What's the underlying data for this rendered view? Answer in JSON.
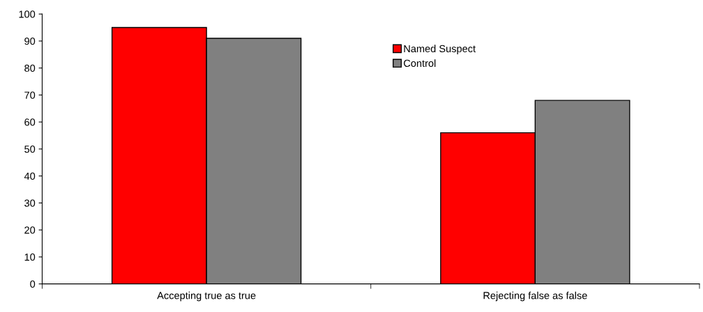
{
  "chart_data": {
    "type": "bar",
    "categories": [
      "Accepting true as true",
      "Rejecting false as false"
    ],
    "series": [
      {
        "name": "Named Suspect",
        "color": "#ff0000",
        "values": [
          95,
          56
        ]
      },
      {
        "name": "Control",
        "color": "#808080",
        "values": [
          91,
          68
        ]
      }
    ],
    "ylim": [
      0,
      100
    ],
    "yticks": [
      0,
      10,
      20,
      30,
      40,
      50,
      60,
      70,
      80,
      90,
      100
    ],
    "grid": false,
    "legend": "top right"
  }
}
